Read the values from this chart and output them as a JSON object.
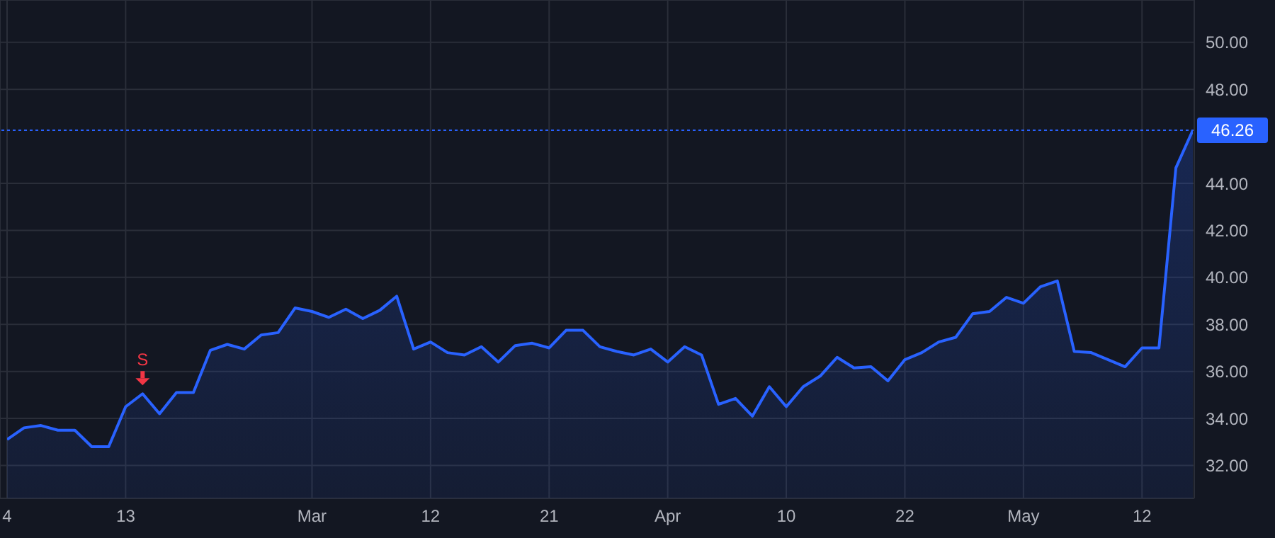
{
  "chart_data": {
    "type": "area",
    "categories": [
      "4",
      null,
      null,
      null,
      null,
      null,
      null,
      "13",
      null,
      null,
      null,
      null,
      null,
      null,
      null,
      null,
      null,
      null,
      "Mar",
      null,
      null,
      null,
      null,
      null,
      null,
      "12",
      null,
      null,
      null,
      null,
      null,
      null,
      "21",
      null,
      null,
      null,
      null,
      null,
      null,
      "Apr",
      null,
      null,
      null,
      null,
      null,
      null,
      "10",
      null,
      null,
      null,
      null,
      null,
      null,
      "22",
      null,
      null,
      null,
      null,
      null,
      null,
      "May",
      null,
      null,
      null,
      null,
      null,
      null,
      "12",
      null,
      null,
      null
    ],
    "series": [
      {
        "color": "#2962ff",
        "values": [
          33.1,
          33.6,
          33.7,
          33.5,
          33.5,
          32.8,
          32.8,
          34.5,
          35.05,
          34.2,
          35.1,
          35.1,
          36.9,
          37.15,
          36.95,
          37.55,
          37.65,
          38.7,
          38.55,
          38.3,
          38.65,
          38.25,
          38.6,
          39.2,
          36.95,
          37.25,
          36.8,
          36.7,
          37.05,
          36.4,
          37.1,
          37.2,
          37.0,
          37.75,
          37.75,
          37.05,
          36.85,
          36.7,
          36.95,
          36.4,
          37.05,
          36.7,
          34.6,
          34.85,
          34.1,
          35.35,
          34.5,
          35.35,
          35.8,
          36.6,
          36.15,
          36.2,
          35.6,
          36.5,
          36.8,
          37.25,
          37.45,
          38.45,
          38.55,
          39.15,
          38.9,
          39.6,
          39.85,
          36.85,
          36.8,
          36.5,
          36.2,
          37.0,
          37.0,
          44.66,
          46.26
        ]
      }
    ],
    "ylim": [
      30.6,
      51.8
    ],
    "yticks": [
      {
        "value": 32,
        "label": "32.00"
      },
      {
        "value": 34,
        "label": "34.00"
      },
      {
        "value": 36,
        "label": "36.00"
      },
      {
        "value": 38,
        "label": "38.00"
      },
      {
        "value": 40,
        "label": "40.00"
      },
      {
        "value": 42,
        "label": "42.00"
      },
      {
        "value": 44,
        "label": "44.00"
      },
      {
        "value": 48,
        "label": "48.00"
      },
      {
        "value": 50,
        "label": "50.00"
      }
    ],
    "ref_lines": [
      {
        "axis": "y",
        "value": 46.26,
        "label": "46.26",
        "color": "#2962ff",
        "line_style": "dotted"
      }
    ],
    "annotations": [
      {
        "text": "S",
        "y": 35.05
      }
    ],
    "grid": true
  }
}
